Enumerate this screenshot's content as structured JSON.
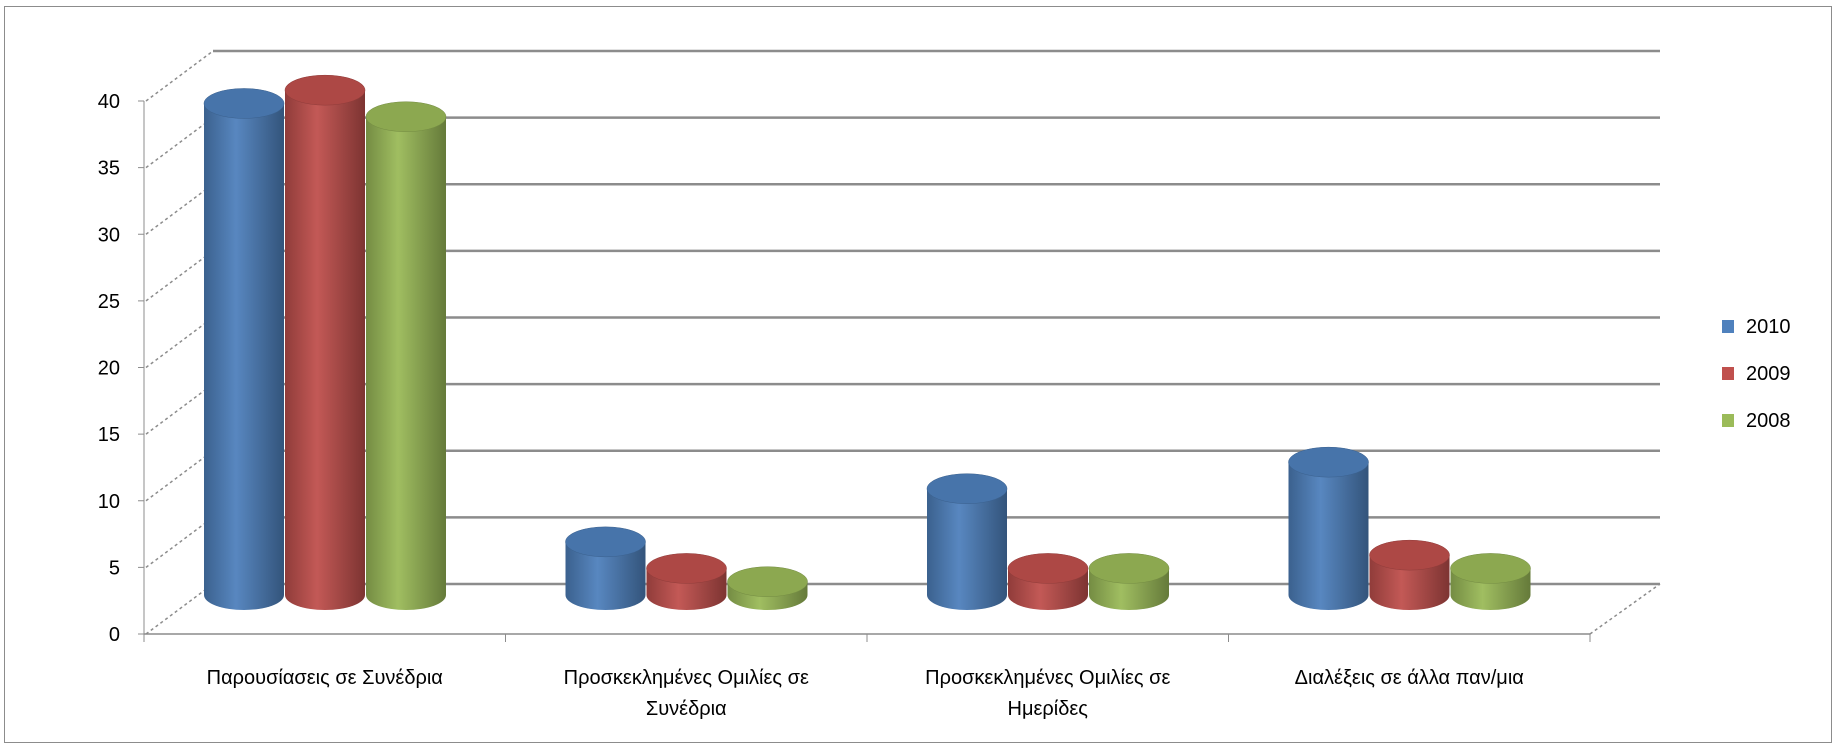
{
  "chart_data": {
    "type": "bar",
    "title": "",
    "xlabel": "",
    "ylabel": "",
    "categories": [
      [
        "Παρουσίασεις σε Συνέδρια"
      ],
      [
        "Προσκεκλημένες Ομιλίες σε",
        "Συνέδρια"
      ],
      [
        "Προσκεκλημένες Ομιλίες σε",
        "Ημερίδες"
      ],
      [
        "Διαλέξεις σε άλλα παν/μια"
      ]
    ],
    "series": [
      {
        "name": "2010",
        "color": "#4f81bd",
        "values": [
          37,
          4,
          8,
          10
        ]
      },
      {
        "name": "2009",
        "color": "#c0504d",
        "values": [
          38,
          2,
          2,
          3
        ]
      },
      {
        "name": "2008",
        "color": "#9bbb59",
        "values": [
          36,
          1,
          2,
          2
        ]
      }
    ],
    "ylim": [
      0,
      40
    ],
    "yticks": [
      0,
      5,
      10,
      15,
      20,
      25,
      30,
      35,
      40
    ],
    "grid": true,
    "legend_position": "right",
    "style": "3d-cylinder"
  }
}
